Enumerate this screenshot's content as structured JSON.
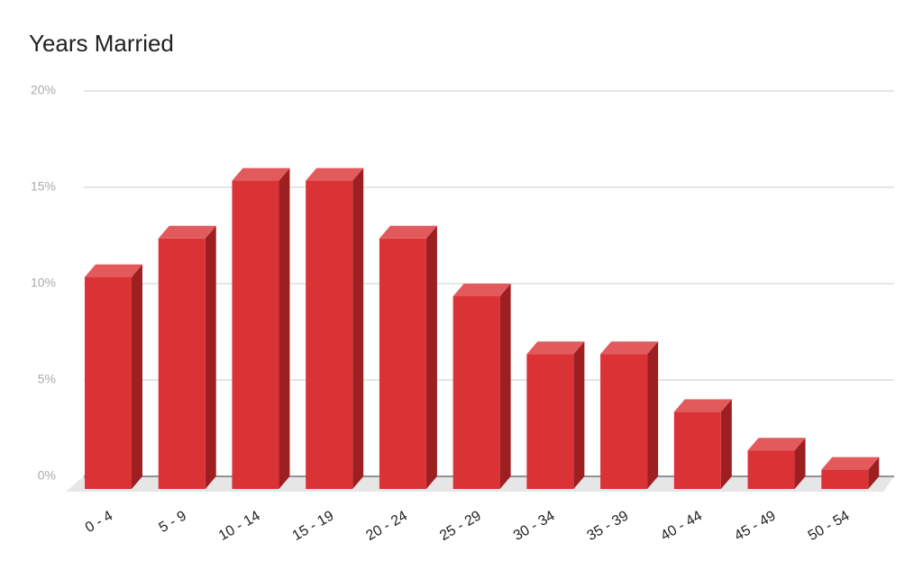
{
  "chart_data": {
    "type": "bar3d",
    "title": "Years Married",
    "categories": [
      "0 - 4",
      "5 - 9",
      "10 - 14",
      "15 - 19",
      "20 - 24",
      "25 - 29",
      "30 - 34",
      "35 - 39",
      "40 - 44",
      "45 - 49",
      "50 - 54"
    ],
    "values": [
      11,
      13,
      16,
      16,
      13,
      10,
      7,
      7,
      4,
      2,
      1
    ],
    "color": "#db3236",
    "ylim": [
      0,
      20
    ],
    "yticks": [
      {
        "value": 0,
        "label": "0%"
      },
      {
        "value": 5,
        "label": "5%"
      },
      {
        "value": 10,
        "label": "10%"
      },
      {
        "value": 15,
        "label": "15%"
      },
      {
        "value": 20,
        "label": "20%"
      }
    ],
    "grid": true
  }
}
